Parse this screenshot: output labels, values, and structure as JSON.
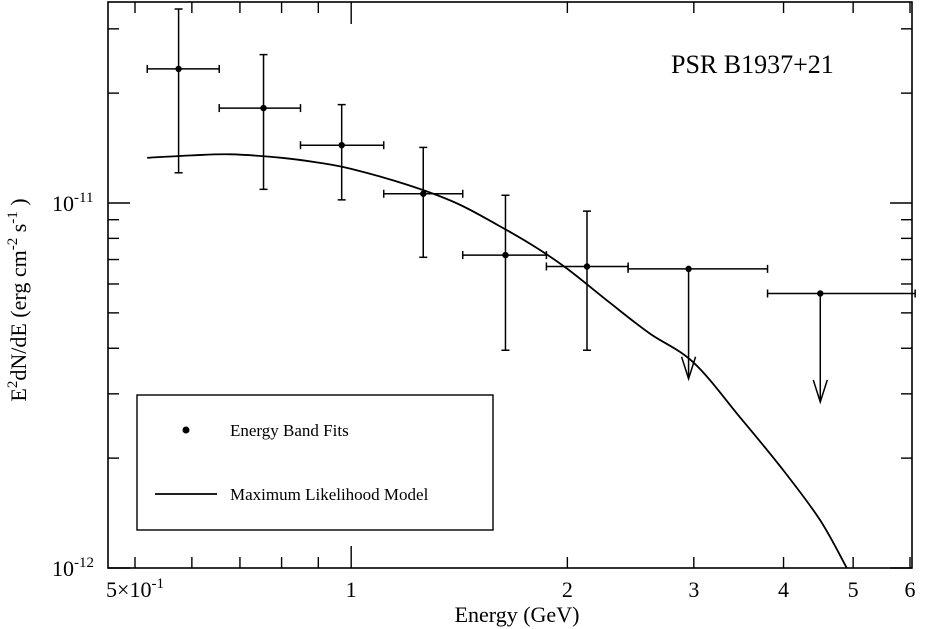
{
  "chart_data": {
    "type": "scatter",
    "title": "PSR B1937+21",
    "xlabel": "Energy (GeV)",
    "ylabel": {
      "main": "E",
      "sup1": "2",
      "mid": "dN/dE (erg cm",
      "sup2": "-2",
      "mid2": " s",
      "sup3": "-1",
      "end": " )"
    },
    "xscale": "log",
    "yscale": "log",
    "xlim": [
      0.5,
      6.2
    ],
    "ylim": [
      1e-12,
      4e-11
    ],
    "grid": false,
    "x_tick_labels": [
      {
        "value": 0.5,
        "label": "5×10",
        "sup": "-1"
      },
      {
        "value": 1,
        "label": "1",
        "sup": ""
      },
      {
        "value": 2,
        "label": "2",
        "sup": ""
      },
      {
        "value": 3,
        "label": "3",
        "sup": ""
      },
      {
        "value": 4,
        "label": "4",
        "sup": ""
      },
      {
        "value": 5,
        "label": "5",
        "sup": ""
      },
      {
        "value": 6,
        "label": "6",
        "sup": ""
      }
    ],
    "y_tick_labels": [
      {
        "value": 1e-12,
        "label": "10",
        "sup": "-12"
      },
      {
        "value": 1e-11,
        "label": "10",
        "sup": "-11"
      }
    ],
    "series": [
      {
        "name": "Energy Band Fits",
        "points": [
          {
            "x": 0.575,
            "y": 2.33e-11,
            "xlo": 0.52,
            "xhi": 0.655,
            "ylo": 1.21e-11,
            "yhi": 3.4e-11
          },
          {
            "x": 0.755,
            "y": 1.82e-11,
            "xlo": 0.655,
            "xhi": 0.85,
            "ylo": 1.09e-11,
            "yhi": 2.55e-11
          },
          {
            "x": 0.97,
            "y": 1.44e-11,
            "xlo": 0.85,
            "xhi": 1.11,
            "ylo": 1.02e-11,
            "yhi": 1.86e-11
          },
          {
            "x": 1.26,
            "y": 1.06e-11,
            "xlo": 1.11,
            "xhi": 1.43,
            "ylo": 7.1e-12,
            "yhi": 1.42e-11
          },
          {
            "x": 1.64,
            "y": 7.2e-12,
            "xlo": 1.43,
            "xhi": 1.87,
            "ylo": 3.95e-12,
            "yhi": 1.05e-11
          },
          {
            "x": 2.13,
            "y": 6.7e-12,
            "xlo": 1.87,
            "xhi": 2.43,
            "ylo": 3.95e-12,
            "yhi": 9.5e-12
          },
          {
            "x": 2.95,
            "y": 6.6e-12,
            "xlo": 2.43,
            "xhi": 3.8,
            "upper_limit": true,
            "arrow_to": 3.3e-12
          },
          {
            "x": 4.5,
            "y": 5.65e-12,
            "xlo": 3.8,
            "xhi": 6.1,
            "upper_limit": true,
            "arrow_to": 2.85e-12
          }
        ]
      },
      {
        "name": "Maximum Likelihood Model",
        "x": [
          0.52,
          0.6,
          0.68,
          0.8,
          0.9,
          1.0,
          1.2,
          1.4,
          1.6,
          1.8,
          2.0,
          2.3,
          2.6,
          3.0,
          3.5,
          4.0,
          4.5,
          4.9
        ],
        "y": [
          1.33e-11,
          1.35e-11,
          1.36e-11,
          1.33e-11,
          1.29e-11,
          1.24e-11,
          1.12e-11,
          1e-11,
          8.7e-12,
          7.6e-12,
          6.6e-12,
          5.3e-12,
          4.4e-12,
          3.65e-12,
          2.55e-12,
          1.85e-12,
          1.35e-12,
          1e-12
        ]
      }
    ],
    "legend": {
      "placement": "bottom-left",
      "entries": [
        "Energy Band Fits",
        "Maximum Likelihood Model"
      ]
    }
  }
}
